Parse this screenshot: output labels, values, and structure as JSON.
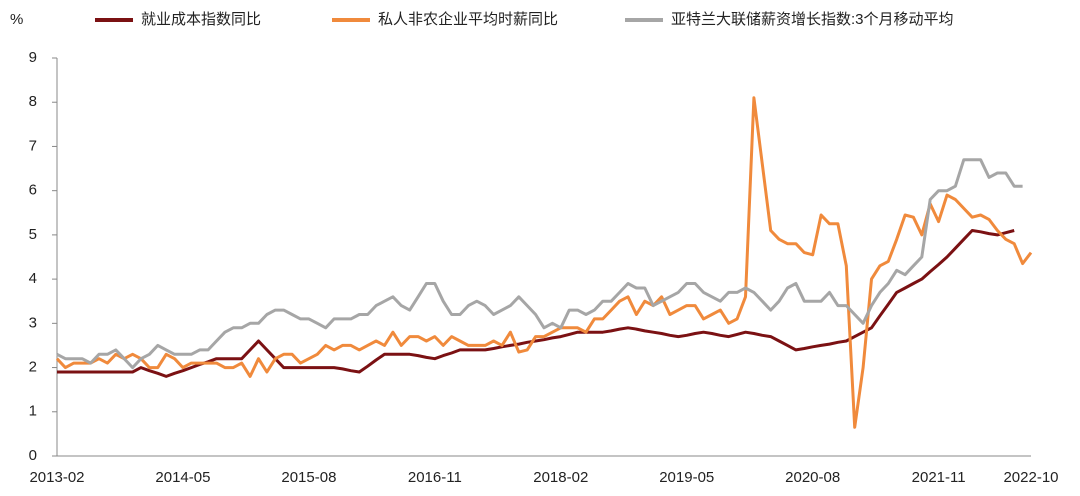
{
  "chart_data": {
    "type": "line",
    "y_label": "%",
    "categories": [
      "2013-02",
      null,
      null,
      null,
      null,
      null,
      null,
      null,
      null,
      null,
      null,
      null,
      null,
      null,
      null,
      "2014-05",
      null,
      null,
      null,
      null,
      null,
      null,
      null,
      null,
      null,
      null,
      null,
      null,
      null,
      null,
      "2015-08",
      null,
      null,
      null,
      null,
      null,
      null,
      null,
      null,
      null,
      null,
      null,
      null,
      null,
      null,
      "2016-11",
      null,
      null,
      null,
      null,
      null,
      null,
      null,
      null,
      null,
      null,
      null,
      null,
      null,
      null,
      "2018-02",
      null,
      null,
      null,
      null,
      null,
      null,
      null,
      null,
      null,
      null,
      null,
      null,
      null,
      null,
      "2019-05",
      null,
      null,
      null,
      null,
      null,
      null,
      null,
      null,
      null,
      null,
      null,
      null,
      null,
      null,
      "2020-08",
      null,
      null,
      null,
      null,
      null,
      null,
      null,
      null,
      null,
      null,
      null,
      null,
      null,
      null,
      "2021-11",
      null,
      null,
      null,
      null,
      null,
      null,
      null,
      null,
      null,
      null,
      "2022-10"
    ],
    "ylim": [
      0,
      9
    ],
    "yticks": [
      0,
      1,
      2,
      3,
      4,
      5,
      6,
      7,
      8,
      9
    ],
    "legend": "top",
    "series": [
      {
        "name": "就业成本指数同比",
        "color": "#7b1113",
        "values": [
          1.9,
          1.9,
          1.9,
          1.9,
          1.9,
          1.9,
          1.9,
          1.9,
          1.9,
          1.9,
          2.0,
          1.93,
          1.87,
          1.8,
          1.87,
          1.93,
          2.0,
          2.07,
          2.13,
          2.2,
          2.2,
          2.2,
          2.2,
          2.4,
          2.6,
          2.4,
          2.2,
          2.0,
          2.0,
          2.0,
          2.0,
          2.0,
          2.0,
          2.0,
          1.97,
          1.93,
          1.9,
          2.03,
          2.17,
          2.3,
          2.3,
          2.3,
          2.3,
          2.27,
          2.23,
          2.2,
          2.27,
          2.33,
          2.4,
          2.4,
          2.4,
          2.4,
          2.43,
          2.47,
          2.5,
          2.53,
          2.57,
          2.6,
          2.63,
          2.67,
          2.7,
          2.75,
          2.8,
          2.8,
          2.8,
          2.8,
          2.83,
          2.87,
          2.9,
          2.87,
          2.83,
          2.8,
          2.77,
          2.73,
          2.7,
          2.73,
          2.77,
          2.8,
          2.77,
          2.73,
          2.7,
          2.75,
          2.8,
          2.77,
          2.73,
          2.7,
          2.6,
          2.5,
          2.4,
          2.43,
          2.47,
          2.5,
          2.53,
          2.57,
          2.6,
          2.7,
          2.8,
          2.9,
          3.17,
          3.43,
          3.7,
          3.8,
          3.9,
          4.0,
          4.17,
          4.33,
          4.5,
          4.7,
          4.9,
          5.1,
          5.07,
          5.03,
          5.0,
          5.05,
          5.1,
          null,
          null
        ]
      },
      {
        "name": "私人非农企业平均时薪同比",
        "color": "#f08a3c",
        "values": [
          2.2,
          2.0,
          2.1,
          2.1,
          2.1,
          2.2,
          2.1,
          2.3,
          2.2,
          2.3,
          2.2,
          2.0,
          2.0,
          2.3,
          2.2,
          2.0,
          2.1,
          2.1,
          2.1,
          2.1,
          2.0,
          2.0,
          2.1,
          1.8,
          2.2,
          1.9,
          2.2,
          2.3,
          2.3,
          2.1,
          2.2,
          2.3,
          2.5,
          2.4,
          2.5,
          2.5,
          2.4,
          2.5,
          2.6,
          2.5,
          2.8,
          2.5,
          2.7,
          2.7,
          2.6,
          2.7,
          2.5,
          2.7,
          2.6,
          2.5,
          2.5,
          2.5,
          2.6,
          2.5,
          2.8,
          2.35,
          2.4,
          2.7,
          2.7,
          2.8,
          2.9,
          2.9,
          2.9,
          2.8,
          3.1,
          3.1,
          3.3,
          3.5,
          3.6,
          3.2,
          3.5,
          3.4,
          3.6,
          3.2,
          3.3,
          3.4,
          3.4,
          3.1,
          3.2,
          3.3,
          3.0,
          3.1,
          3.6,
          8.1,
          6.6,
          5.1,
          4.9,
          4.8,
          4.8,
          4.6,
          4.55,
          5.45,
          5.25,
          5.25,
          4.3,
          0.65,
          2.0,
          4.0,
          4.3,
          4.4,
          4.9,
          5.45,
          5.4,
          5.0,
          5.7,
          5.3,
          5.9,
          5.8,
          5.6,
          5.4,
          5.45,
          5.35,
          5.1,
          4.9,
          4.8,
          4.35,
          4.6
        ]
      },
      {
        "name": "亚特兰大联储薪资增长指数:3个月移动平均",
        "color": "#a6a6a6",
        "values": [
          2.3,
          2.2,
          2.2,
          2.2,
          2.1,
          2.3,
          2.3,
          2.4,
          2.2,
          2.0,
          2.2,
          2.3,
          2.5,
          2.4,
          2.3,
          2.3,
          2.3,
          2.4,
          2.4,
          2.6,
          2.8,
          2.9,
          2.9,
          3.0,
          3.0,
          3.2,
          3.3,
          3.3,
          3.2,
          3.1,
          3.1,
          3.0,
          2.9,
          3.1,
          3.1,
          3.1,
          3.2,
          3.2,
          3.4,
          3.5,
          3.6,
          3.4,
          3.3,
          3.6,
          3.9,
          3.9,
          3.5,
          3.2,
          3.2,
          3.4,
          3.5,
          3.4,
          3.2,
          3.3,
          3.4,
          3.6,
          3.4,
          3.2,
          2.9,
          3.0,
          2.9,
          3.3,
          3.3,
          3.2,
          3.3,
          3.5,
          3.5,
          3.7,
          3.9,
          3.8,
          3.8,
          3.4,
          3.5,
          3.6,
          3.7,
          3.9,
          3.9,
          3.7,
          3.6,
          3.5,
          3.7,
          3.7,
          3.8,
          3.7,
          3.5,
          3.3,
          3.5,
          3.8,
          3.9,
          3.5,
          3.5,
          3.5,
          3.7,
          3.4,
          3.4,
          3.2,
          3.0,
          3.4,
          3.7,
          3.9,
          4.2,
          4.1,
          4.3,
          4.5,
          5.8,
          6.0,
          6.0,
          6.1,
          6.7,
          6.7,
          6.7,
          6.3,
          6.4,
          6.4,
          6.1,
          6.1,
          null
        ]
      }
    ]
  }
}
